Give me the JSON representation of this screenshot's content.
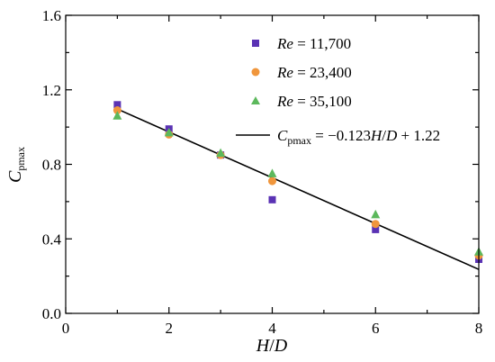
{
  "chart_data": {
    "type": "scatter",
    "xlabel": {
      "var": "H",
      "sep": "/",
      "var2": "D"
    },
    "ylabel": {
      "var": "C",
      "sub": "pmax"
    },
    "xlim": [
      0,
      8
    ],
    "ylim": [
      0,
      1.6
    ],
    "xticks": [
      0,
      2,
      4,
      6,
      8
    ],
    "yticks": [
      0.0,
      0.4,
      0.8,
      1.2,
      1.6
    ],
    "xtick_labels": [
      "0",
      "2",
      "4",
      "6",
      "8"
    ],
    "ytick_labels": [
      "0.0",
      "0.4",
      "0.8",
      "1.2",
      "1.6"
    ],
    "legend_position": "top-right",
    "series": [
      {
        "name": {
          "var": "Re",
          "rest": " = 11,700"
        },
        "marker": "square",
        "color": "#5a32b4",
        "x": [
          1,
          2,
          3,
          4,
          6,
          8
        ],
        "y": [
          1.12,
          0.99,
          0.85,
          0.61,
          0.45,
          0.29
        ]
      },
      {
        "name": {
          "var": "Re",
          "rest": " = 23,400"
        },
        "marker": "circle",
        "color": "#f0963c",
        "x": [
          1,
          2,
          3,
          4,
          6,
          8
        ],
        "y": [
          1.09,
          0.96,
          0.85,
          0.71,
          0.48,
          0.31
        ]
      },
      {
        "name": {
          "var": "Re",
          "rest": " = 35,100"
        },
        "marker": "triangle",
        "color": "#5cb85c",
        "x": [
          1,
          2,
          3,
          4,
          6,
          8
        ],
        "y": [
          1.06,
          0.97,
          0.86,
          0.75,
          0.53,
          0.33
        ]
      }
    ],
    "fit_line": {
      "label": {
        "var": "C",
        "sub": "pmax",
        "eq1": " = −0.123",
        "v1": "H",
        "sep": "/",
        "v2": "D",
        "eq2": " + 1.22"
      },
      "slope": -0.123,
      "intercept": 1.22,
      "x_range": [
        1,
        8
      ],
      "color": "#000000"
    }
  }
}
